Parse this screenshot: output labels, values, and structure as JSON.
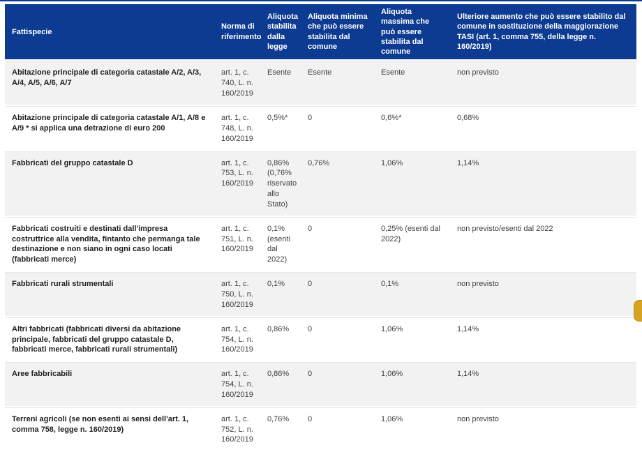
{
  "theme": {
    "header_blue": "#0d3b92",
    "zebra_gray": "#f2f2f2",
    "gold_accent": "#d6a322"
  },
  "table": {
    "columns": [
      {
        "label": "Fattispecie"
      },
      {
        "label": "Norma di riferimento"
      },
      {
        "label": "Aliquota stabilita dalla legge"
      },
      {
        "label": "Aliquota minima che può essere stabilita dal comune"
      },
      {
        "label": "Aliquota massima che può essere stabilita dal comune"
      },
      {
        "label": "Ulteriore aumento che può essere stabilito dal comune in sostituzione della maggiorazione TASI (art. 1, comma 755, della legge n. 160/2019)"
      }
    ],
    "rows": [
      {
        "fattispecie": "Abitazione principale di categoria catastale A/2, A/3, A/4, A/5, A/6, A/7",
        "norma": "art. 1, c. 740, L. n. 160/2019",
        "aliquota_legge": "Esente",
        "aliquota_minima": "Esente",
        "aliquota_massima": "Esente",
        "ulteriore_aumento": "non previsto"
      },
      {
        "fattispecie": "Abitazione principale di categoria catastale A/1, A/8 e A/9 * si applica una detrazione di euro 200",
        "norma": "art. 1, c. 748, L. n. 160/2019",
        "aliquota_legge": "0,5%*",
        "aliquota_minima": "0",
        "aliquota_massima": "0,6%*",
        "ulteriore_aumento": "0,68%"
      },
      {
        "fattispecie": "Fabbricati del gruppo catastale D",
        "norma": "art. 1, c. 753, L. n. 160/2019",
        "aliquota_legge": "0,86% (0,76% riservato allo Stato)",
        "aliquota_minima": "0,76%",
        "aliquota_massima": "1,06%",
        "ulteriore_aumento": "1,14%"
      },
      {
        "fattispecie": "Fabbricati costruiti e destinati dall'impresa costruttrice alla vendita, fintanto che permanga tale destinazione e non siano in ogni caso locati (fabbricati merce)",
        "norma": "art. 1, c. 751, L. n. 160/2019",
        "aliquota_legge": "0,1% (esenti dal 2022)",
        "aliquota_minima": "0",
        "aliquota_massima": "0,25% (esenti dal 2022)",
        "ulteriore_aumento": "non previsto/esenti dal 2022"
      },
      {
        "fattispecie": "Fabbricati rurali strumentali",
        "norma": "art. 1, c. 750, L. n. 160/2019",
        "aliquota_legge": "0,1%",
        "aliquota_minima": "0",
        "aliquota_massima": "0,1%",
        "ulteriore_aumento": "non previsto"
      },
      {
        "fattispecie": "Altri fabbricati (fabbricati diversi da abitazione principale, fabbricati del gruppo catastale D, fabbricati merce, fabbricati rurali strumentali)",
        "norma": "art. 1, c. 754, L. n. 160/2019",
        "aliquota_legge": "0,86%",
        "aliquota_minima": "0",
        "aliquota_massima": "1,06%",
        "ulteriore_aumento": "1,14%"
      },
      {
        "fattispecie": "Aree fabbricabili",
        "norma": "art. 1, c. 754, L. n. 160/2019",
        "aliquota_legge": "0,86%",
        "aliquota_minima": "0",
        "aliquota_massima": "1,06%",
        "ulteriore_aumento": "1,14%"
      },
      {
        "fattispecie": "Terreni agricoli (se non esenti ai sensi dell'art. 1, comma 758, legge n. 160/2019)",
        "norma": "art. 1, c. 752, L. n. 160/2019",
        "aliquota_legge": "0,76%",
        "aliquota_minima": "0",
        "aliquota_massima": "1,06%",
        "ulteriore_aumento": "non previsto"
      }
    ]
  }
}
